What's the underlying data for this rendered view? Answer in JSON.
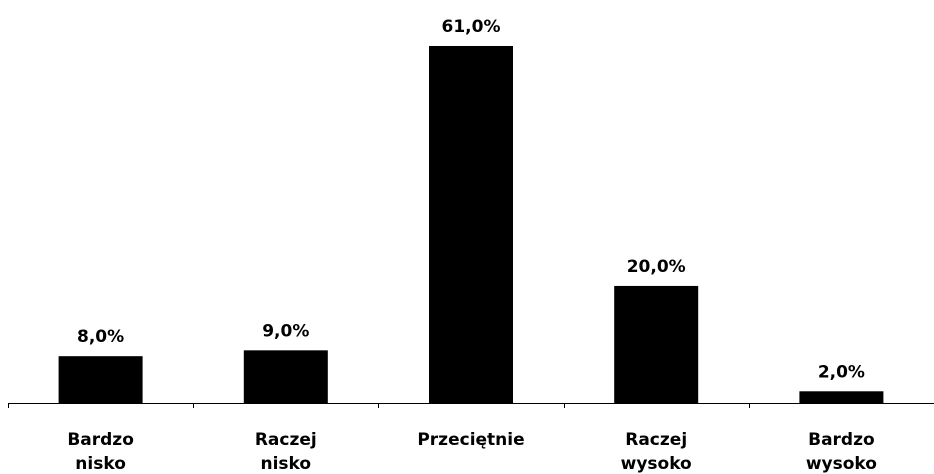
{
  "chart_data": {
    "type": "bar",
    "categories": [
      [
        "Bardzo",
        "nisko"
      ],
      [
        "Raczej",
        "nisko"
      ],
      [
        "Przeciętnie"
      ],
      [
        "Raczej",
        "wysoko"
      ],
      [
        "Bardzo",
        "wysoko"
      ]
    ],
    "values": [
      8.0,
      9.0,
      61.0,
      20.0,
      2.0
    ],
    "data_labels": [
      "8,0%",
      "9,0%",
      "61,0%",
      "20,0%",
      "2,0%"
    ],
    "unit": "%",
    "ylim": [
      0,
      61
    ],
    "grid": false,
    "legend": "none",
    "bar_color": "#000000"
  }
}
